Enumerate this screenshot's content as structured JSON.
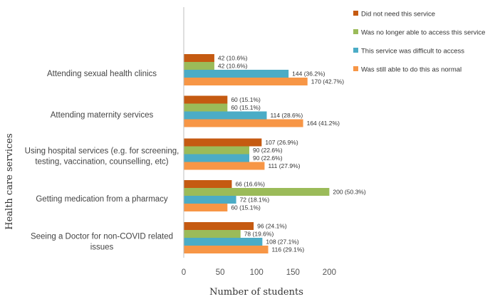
{
  "chart_data": {
    "type": "bar",
    "orientation": "horizontal",
    "ylabel": "Health care services",
    "xlabel": "Number of students",
    "xlim": [
      0,
      200
    ],
    "xticks": [
      "0",
      "50",
      "100",
      "150",
      "200"
    ],
    "grid": false,
    "legend_position": "top-right",
    "categories": [
      "Attending sexual health clinics",
      "Attending maternity services",
      "Using hospital services (e.g. for screening, testing, vaccination, counselling, etc)",
      "Getting medication from a pharmacy",
      "Seeing a Doctor for non-COVID related issues"
    ],
    "series": [
      {
        "name": "Did not need this service",
        "color": "#c55a11",
        "values": [
          42,
          60,
          107,
          66,
          96
        ],
        "labels": [
          "42 (10.6%)",
          "60 (15.1%)",
          "107 (26.9%)",
          "66 (16.6%)",
          "96 (24.1%)"
        ]
      },
      {
        "name": "Was no longer able to access this service",
        "color": "#9bbb59",
        "values": [
          42,
          60,
          90,
          200,
          78
        ],
        "labels": [
          "42 (10.6%)",
          "60 (15.1%)",
          "90 (22.6%)",
          "200 (50.3%)",
          "78 (19.6%)"
        ]
      },
      {
        "name": "This service was difficult to access",
        "color": "#4bacc6",
        "values": [
          144,
          114,
          90,
          72,
          108
        ],
        "labels": [
          "144 (36.2%)",
          "114 (28.6%)",
          "90 (22.6%)",
          "72 (18.1%)",
          "108 (27.1%)"
        ]
      },
      {
        "name": "Was still able to do this as normal",
        "color": "#f79646",
        "values": [
          170,
          164,
          111,
          60,
          116
        ],
        "labels": [
          "170 (42.7%)",
          "164 (41.2%)",
          "111 (27.9%)",
          "60 (15.1%)",
          "116 (29.1%)"
        ]
      }
    ]
  }
}
